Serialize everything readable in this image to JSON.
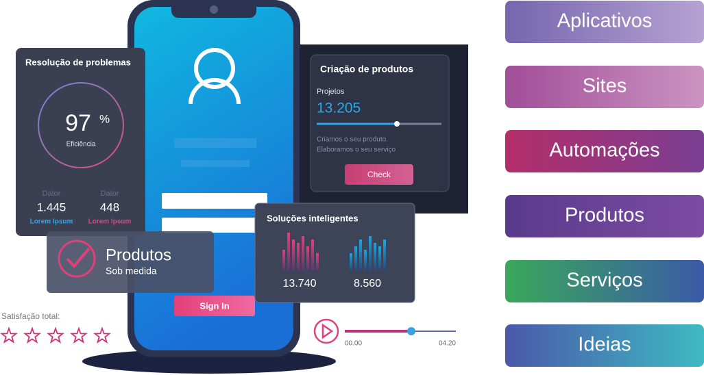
{
  "menu": [
    "Aplicativos",
    "Sites",
    "Automações",
    "Produtos",
    "Serviços",
    "Ideias"
  ],
  "efficiency_card": {
    "title": "Resolução de problemas",
    "value": "97",
    "unit": "%",
    "label": "Eficiência",
    "stats": [
      {
        "label": "Dator",
        "value": "1.445",
        "caption": "Lorem Ipsum"
      },
      {
        "label": "Dator",
        "value": "448",
        "caption": "Lorem Ipsum"
      }
    ]
  },
  "product_badge": {
    "title": "Produtos",
    "subtitle": "Sob medida"
  },
  "rating": {
    "label": "Satisfação total:"
  },
  "creation_card": {
    "title": "Criação de produtos",
    "metric_label": "Projetos",
    "metric_value": "13.205",
    "text": [
      "Criamos o seu produto.",
      "Elaboramos o seu serviço"
    ],
    "button": "Check"
  },
  "solutions_card": {
    "title": "Soluções inteligentes",
    "values": [
      "13.740",
      "8.560"
    ]
  },
  "phone": {
    "button": "Sign In"
  },
  "player": {
    "start": "00.00",
    "end": "04.20"
  }
}
